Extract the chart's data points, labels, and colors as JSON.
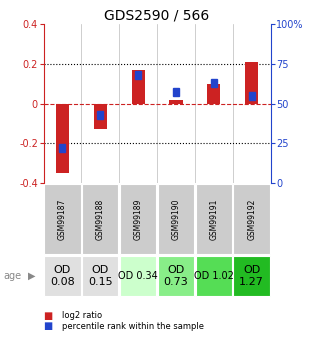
{
  "title": "GDS2590 / 566",
  "samples": [
    "GSM99187",
    "GSM99188",
    "GSM99189",
    "GSM99190",
    "GSM99191",
    "GSM99192"
  ],
  "log2_ratio": [
    -0.35,
    -0.13,
    0.17,
    0.02,
    0.1,
    0.21
  ],
  "percentile_rank_pct": [
    22,
    43,
    68,
    57,
    63,
    55
  ],
  "ylim": [
    -0.4,
    0.4
  ],
  "yticks_left": [
    -0.4,
    -0.2,
    0.0,
    0.2,
    0.4
  ],
  "yticks_right": [
    0,
    25,
    50,
    75,
    100
  ],
  "ytick_labels_left": [
    "-0.4",
    "-0.2",
    "0",
    "0.2",
    "0.4"
  ],
  "ytick_labels_right": [
    "0",
    "25",
    "50",
    "75",
    "100%"
  ],
  "red_color": "#cc2222",
  "blue_color": "#2244cc",
  "bar_color_red": "#cc2222",
  "bar_color_blue": "#2244cc",
  "od_values": [
    "OD\n0.08",
    "OD\n0.15",
    "OD 0.34",
    "OD\n0.73",
    "OD 1.02",
    "OD\n1.27"
  ],
  "od_colors": [
    "#e0e0e0",
    "#e0e0e0",
    "#ccffcc",
    "#88ee88",
    "#55dd55",
    "#22bb22"
  ],
  "od_font_sizes": [
    8,
    8,
    7,
    8,
    7,
    8
  ],
  "sample_bg_color": "#cccccc",
  "legend_red_label": "log2 ratio",
  "legend_blue_label": "percentile rank within the sample",
  "age_label": "age",
  "title_fontsize": 10,
  "bar_width": 0.35,
  "blue_square_size": 0.04
}
